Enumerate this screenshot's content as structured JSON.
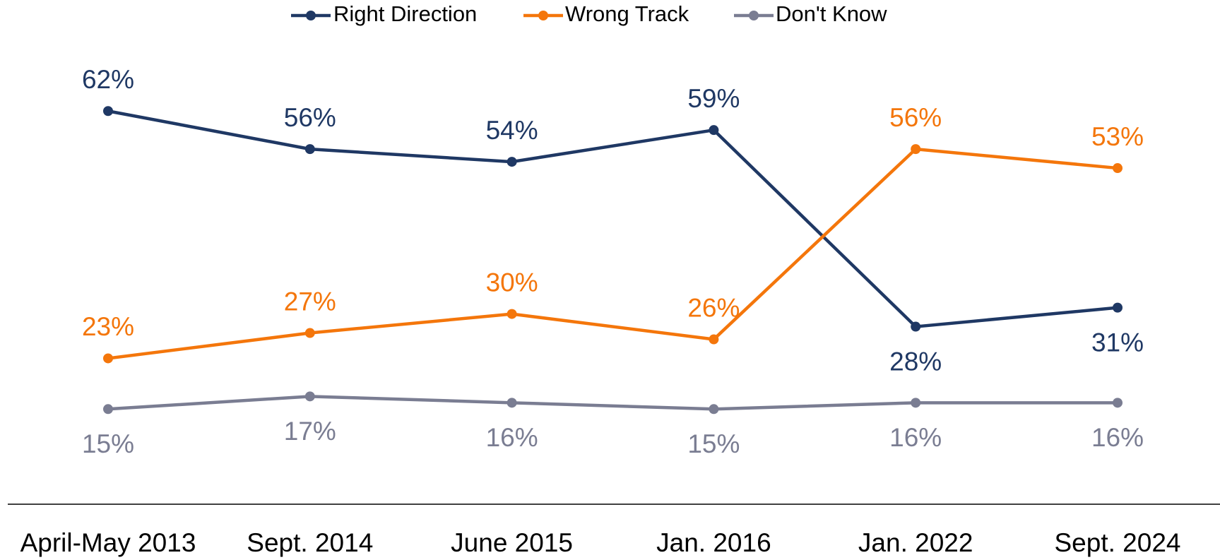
{
  "chart_data": {
    "type": "line",
    "categories": [
      "April-May 2013",
      "Sept. 2014",
      "June 2015",
      "Jan. 2016",
      "Jan. 2022",
      "Sept. 2024"
    ],
    "series": [
      {
        "name": "Right Direction",
        "color": "#1f3864",
        "values": [
          62,
          56,
          54,
          59,
          28,
          31
        ],
        "value_labels": [
          "62%",
          "56%",
          "54%",
          "59%",
          "28%",
          "31%"
        ]
      },
      {
        "name": "Wrong Track",
        "color": "#f4760b",
        "values": [
          23,
          27,
          30,
          26,
          56,
          53
        ],
        "value_labels": [
          "23%",
          "27%",
          "30%",
          "26%",
          "56%",
          "53%"
        ]
      },
      {
        "name": "Don't Know",
        "color": "#7a7d92",
        "values": [
          15,
          17,
          16,
          15,
          16,
          16
        ],
        "value_labels": [
          "15%",
          "17%",
          "16%",
          "15%",
          "16%",
          "16%"
        ]
      }
    ],
    "legend": "top"
  }
}
